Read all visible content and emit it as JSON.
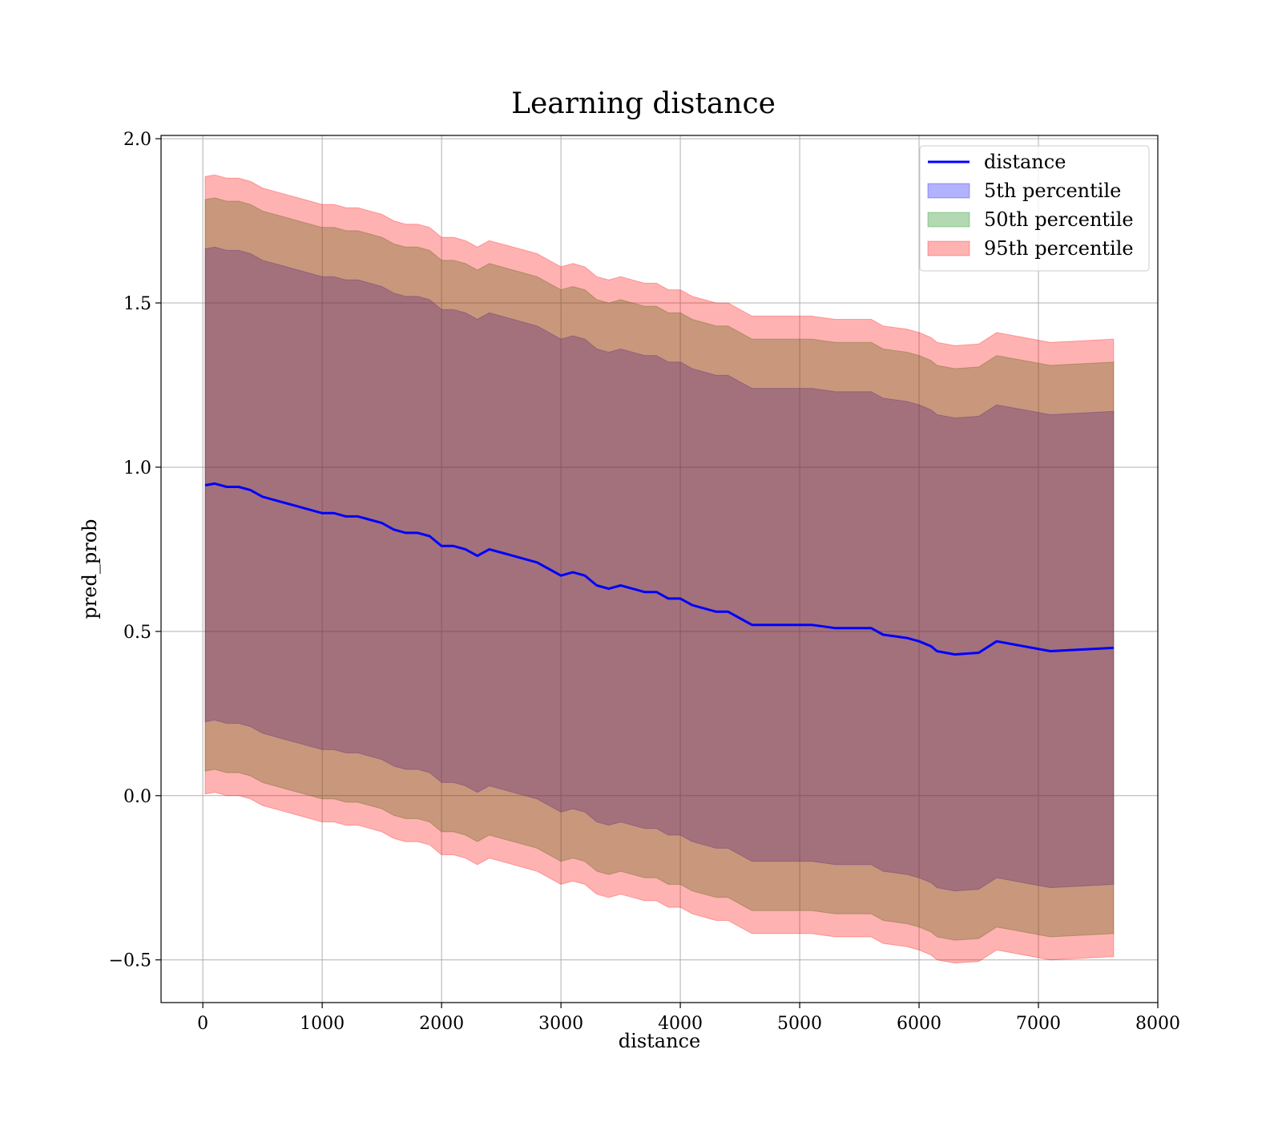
{
  "chart_data": {
    "type": "area",
    "title": "Learning distance",
    "xlabel": "distance",
    "ylabel": "pred_prob",
    "xlim": [
      -350,
      8000
    ],
    "ylim": [
      -0.63,
      2.01
    ],
    "grid": true,
    "legend_position": "top-right",
    "x_ticks": [
      0,
      1000,
      2000,
      3000,
      4000,
      5000,
      6000,
      7000,
      8000
    ],
    "x_tick_labels": [
      "0",
      "1000",
      "2000",
      "3000",
      "4000",
      "5000",
      "6000",
      "7000",
      "8000"
    ],
    "y_ticks": [
      -0.5,
      0.0,
      0.5,
      1.0,
      1.5,
      2.0
    ],
    "y_tick_labels": [
      "−0.5",
      "0.0",
      "0.5",
      "1.0",
      "1.5",
      "2.0"
    ],
    "x": [
      20,
      100,
      200,
      300,
      400,
      500,
      600,
      700,
      800,
      900,
      1000,
      1100,
      1200,
      1300,
      1400,
      1500,
      1600,
      1700,
      1800,
      1900,
      2000,
      2100,
      2200,
      2300,
      2400,
      2500,
      2600,
      2700,
      2800,
      2900,
      3000,
      3100,
      3200,
      3300,
      3400,
      3500,
      3600,
      3700,
      3800,
      3900,
      4000,
      4100,
      4200,
      4300,
      4400,
      4500,
      4600,
      4700,
      4800,
      4900,
      5000,
      5100,
      5200,
      5300,
      5400,
      5500,
      5600,
      5700,
      5800,
      5900,
      6000,
      6100,
      6150,
      6300,
      6500,
      6650,
      7100,
      7630
    ],
    "series": [
      {
        "name": "distance",
        "kind": "line",
        "color": "#0000ff",
        "values": [
          0.945,
          0.95,
          0.94,
          0.94,
          0.93,
          0.91,
          0.9,
          0.89,
          0.88,
          0.87,
          0.86,
          0.86,
          0.85,
          0.85,
          0.84,
          0.83,
          0.81,
          0.8,
          0.8,
          0.79,
          0.76,
          0.76,
          0.75,
          0.73,
          0.75,
          0.74,
          0.73,
          0.72,
          0.71,
          0.69,
          0.67,
          0.68,
          0.67,
          0.64,
          0.63,
          0.64,
          0.63,
          0.62,
          0.62,
          0.6,
          0.6,
          0.58,
          0.57,
          0.56,
          0.56,
          0.54,
          0.52,
          0.52,
          0.52,
          0.52,
          0.52,
          0.52,
          0.515,
          0.51,
          0.51,
          0.51,
          0.51,
          0.49,
          0.485,
          0.48,
          0.47,
          0.455,
          0.44,
          0.43,
          0.435,
          0.47,
          0.44,
          0.45
        ]
      },
      {
        "name": "5th percentile",
        "kind": "band",
        "color": "#0000ff",
        "opacity": 0.3,
        "upper": [
          1.665,
          1.67,
          1.66,
          1.66,
          1.65,
          1.63,
          1.62,
          1.61,
          1.6,
          1.59,
          1.58,
          1.58,
          1.57,
          1.57,
          1.56,
          1.55,
          1.53,
          1.52,
          1.52,
          1.51,
          1.48,
          1.48,
          1.47,
          1.45,
          1.47,
          1.46,
          1.45,
          1.44,
          1.43,
          1.41,
          1.39,
          1.4,
          1.39,
          1.36,
          1.35,
          1.36,
          1.35,
          1.34,
          1.34,
          1.32,
          1.32,
          1.3,
          1.29,
          1.28,
          1.28,
          1.26,
          1.24,
          1.24,
          1.24,
          1.24,
          1.24,
          1.24,
          1.235,
          1.23,
          1.23,
          1.23,
          1.23,
          1.21,
          1.205,
          1.2,
          1.19,
          1.175,
          1.16,
          1.15,
          1.155,
          1.19,
          1.16,
          1.17
        ],
        "lower": [
          0.225,
          0.23,
          0.22,
          0.22,
          0.21,
          0.19,
          0.18,
          0.17,
          0.16,
          0.15,
          0.14,
          0.14,
          0.13,
          0.13,
          0.12,
          0.11,
          0.09,
          0.08,
          0.08,
          0.07,
          0.04,
          0.04,
          0.03,
          0.01,
          0.03,
          0.02,
          0.01,
          0.0,
          -0.01,
          -0.03,
          -0.05,
          -0.04,
          -0.05,
          -0.08,
          -0.09,
          -0.08,
          -0.09,
          -0.1,
          -0.1,
          -0.12,
          -0.12,
          -0.14,
          -0.15,
          -0.16,
          -0.16,
          -0.18,
          -0.2,
          -0.2,
          -0.2,
          -0.2,
          -0.2,
          -0.2,
          -0.205,
          -0.21,
          -0.21,
          -0.21,
          -0.21,
          -0.23,
          -0.235,
          -0.24,
          -0.25,
          -0.265,
          -0.28,
          -0.29,
          -0.285,
          -0.25,
          -0.28,
          -0.27
        ]
      },
      {
        "name": "50th percentile",
        "kind": "band",
        "color": "#008000",
        "opacity": 0.3,
        "upper": [
          1.815,
          1.82,
          1.81,
          1.81,
          1.8,
          1.78,
          1.77,
          1.76,
          1.75,
          1.74,
          1.73,
          1.73,
          1.72,
          1.72,
          1.71,
          1.7,
          1.68,
          1.67,
          1.67,
          1.66,
          1.63,
          1.63,
          1.62,
          1.6,
          1.62,
          1.61,
          1.6,
          1.59,
          1.58,
          1.56,
          1.54,
          1.55,
          1.54,
          1.51,
          1.5,
          1.51,
          1.5,
          1.49,
          1.49,
          1.47,
          1.47,
          1.45,
          1.44,
          1.43,
          1.43,
          1.41,
          1.39,
          1.39,
          1.39,
          1.39,
          1.39,
          1.39,
          1.385,
          1.38,
          1.38,
          1.38,
          1.38,
          1.36,
          1.355,
          1.35,
          1.34,
          1.325,
          1.31,
          1.3,
          1.305,
          1.34,
          1.31,
          1.32
        ],
        "lower": [
          0.075,
          0.08,
          0.07,
          0.07,
          0.06,
          0.04,
          0.03,
          0.02,
          0.01,
          0.0,
          -0.01,
          -0.01,
          -0.02,
          -0.02,
          -0.03,
          -0.04,
          -0.06,
          -0.07,
          -0.07,
          -0.08,
          -0.11,
          -0.11,
          -0.12,
          -0.14,
          -0.12,
          -0.13,
          -0.14,
          -0.15,
          -0.16,
          -0.18,
          -0.2,
          -0.19,
          -0.2,
          -0.23,
          -0.24,
          -0.23,
          -0.24,
          -0.25,
          -0.25,
          -0.27,
          -0.27,
          -0.29,
          -0.3,
          -0.31,
          -0.31,
          -0.33,
          -0.35,
          -0.35,
          -0.35,
          -0.35,
          -0.35,
          -0.35,
          -0.355,
          -0.36,
          -0.36,
          -0.36,
          -0.36,
          -0.38,
          -0.385,
          -0.39,
          -0.4,
          -0.415,
          -0.43,
          -0.44,
          -0.435,
          -0.4,
          -0.43,
          -0.42
        ]
      },
      {
        "name": "95th percentile",
        "kind": "band",
        "color": "#ff0000",
        "opacity": 0.3,
        "upper": [
          1.885,
          1.89,
          1.88,
          1.88,
          1.87,
          1.85,
          1.84,
          1.83,
          1.82,
          1.81,
          1.8,
          1.8,
          1.79,
          1.79,
          1.78,
          1.77,
          1.75,
          1.74,
          1.74,
          1.73,
          1.7,
          1.7,
          1.69,
          1.67,
          1.69,
          1.68,
          1.67,
          1.66,
          1.65,
          1.63,
          1.61,
          1.62,
          1.61,
          1.58,
          1.57,
          1.58,
          1.57,
          1.56,
          1.56,
          1.54,
          1.54,
          1.52,
          1.51,
          1.5,
          1.5,
          1.48,
          1.46,
          1.46,
          1.46,
          1.46,
          1.46,
          1.46,
          1.455,
          1.45,
          1.45,
          1.45,
          1.45,
          1.43,
          1.425,
          1.42,
          1.41,
          1.395,
          1.38,
          1.37,
          1.375,
          1.41,
          1.38,
          1.39
        ],
        "lower": [
          0.005,
          0.01,
          0.0,
          0.0,
          -0.01,
          -0.03,
          -0.04,
          -0.05,
          -0.06,
          -0.07,
          -0.08,
          -0.08,
          -0.09,
          -0.09,
          -0.1,
          -0.11,
          -0.13,
          -0.14,
          -0.14,
          -0.15,
          -0.18,
          -0.18,
          -0.19,
          -0.21,
          -0.19,
          -0.2,
          -0.21,
          -0.22,
          -0.23,
          -0.25,
          -0.27,
          -0.26,
          -0.27,
          -0.3,
          -0.31,
          -0.3,
          -0.31,
          -0.32,
          -0.32,
          -0.34,
          -0.34,
          -0.36,
          -0.37,
          -0.38,
          -0.38,
          -0.4,
          -0.42,
          -0.42,
          -0.42,
          -0.42,
          -0.42,
          -0.42,
          -0.425,
          -0.43,
          -0.43,
          -0.43,
          -0.43,
          -0.45,
          -0.455,
          -0.46,
          -0.47,
          -0.485,
          -0.5,
          -0.51,
          -0.505,
          -0.47,
          -0.5,
          -0.49
        ]
      }
    ]
  }
}
